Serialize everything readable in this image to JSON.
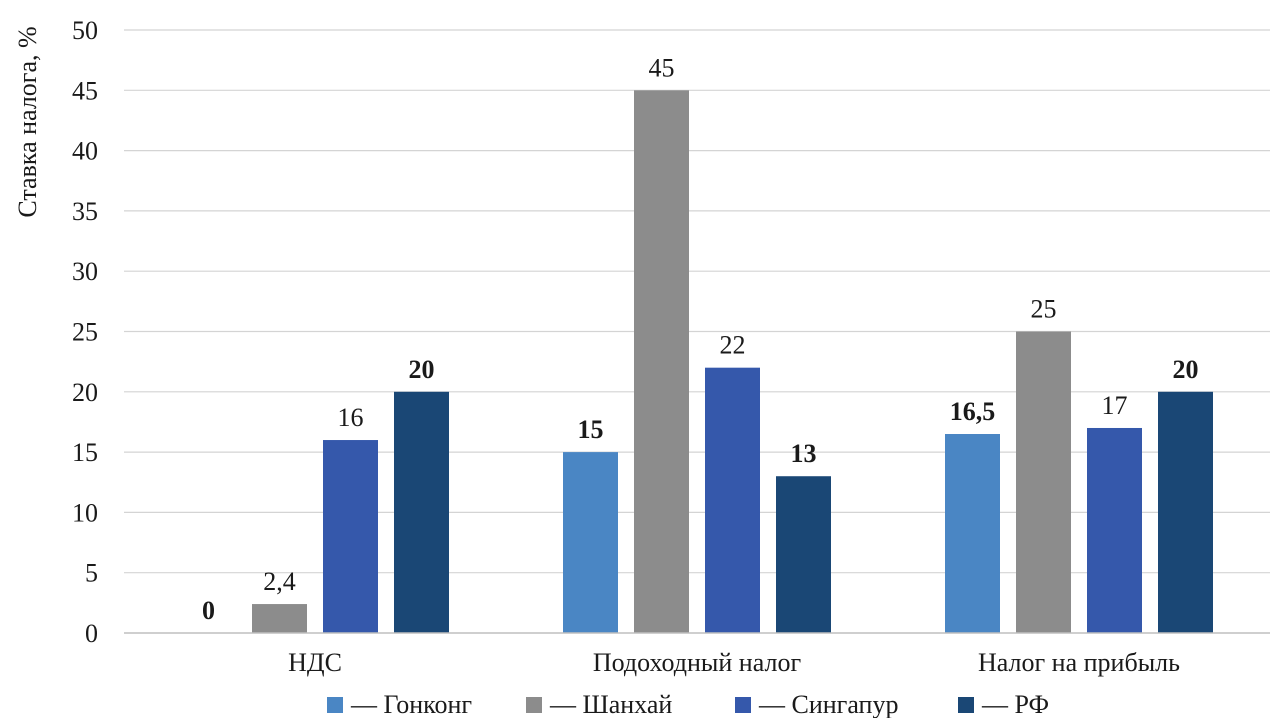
{
  "chart_data": {
    "type": "bar",
    "ylabel": "Ставка налога, %",
    "xlabel": "",
    "ylim": [
      0,
      50
    ],
    "yticks": [
      "0",
      "5",
      "10",
      "15",
      "20",
      "25",
      "30",
      "35",
      "40",
      "45",
      "50"
    ],
    "grid": true,
    "legend_position": "bottom",
    "categories": [
      "НДС",
      "Подоходный налог",
      "Налог на прибыль"
    ],
    "series": [
      {
        "name": "— Гонконг",
        "color": "#4a86c4",
        "values": [
          0,
          15,
          16.5
        ],
        "labels": [
          "0",
          "15",
          "16,5"
        ],
        "bold_labels": true
      },
      {
        "name": "— Шанхай",
        "color": "#8c8c8c",
        "values": [
          2.4,
          45,
          25
        ],
        "labels": [
          "2,4",
          "45",
          "25"
        ],
        "bold_labels": false
      },
      {
        "name": "— Сингапур",
        "color": "#3558ab",
        "values": [
          16,
          22,
          17
        ],
        "labels": [
          "16",
          "22",
          "17"
        ],
        "bold_labels": false
      },
      {
        "name": "— РФ",
        "color": "#1a4775",
        "values": [
          20,
          13,
          20
        ],
        "labels": [
          "20",
          "13",
          "20"
        ],
        "bold_labels": true
      }
    ]
  }
}
